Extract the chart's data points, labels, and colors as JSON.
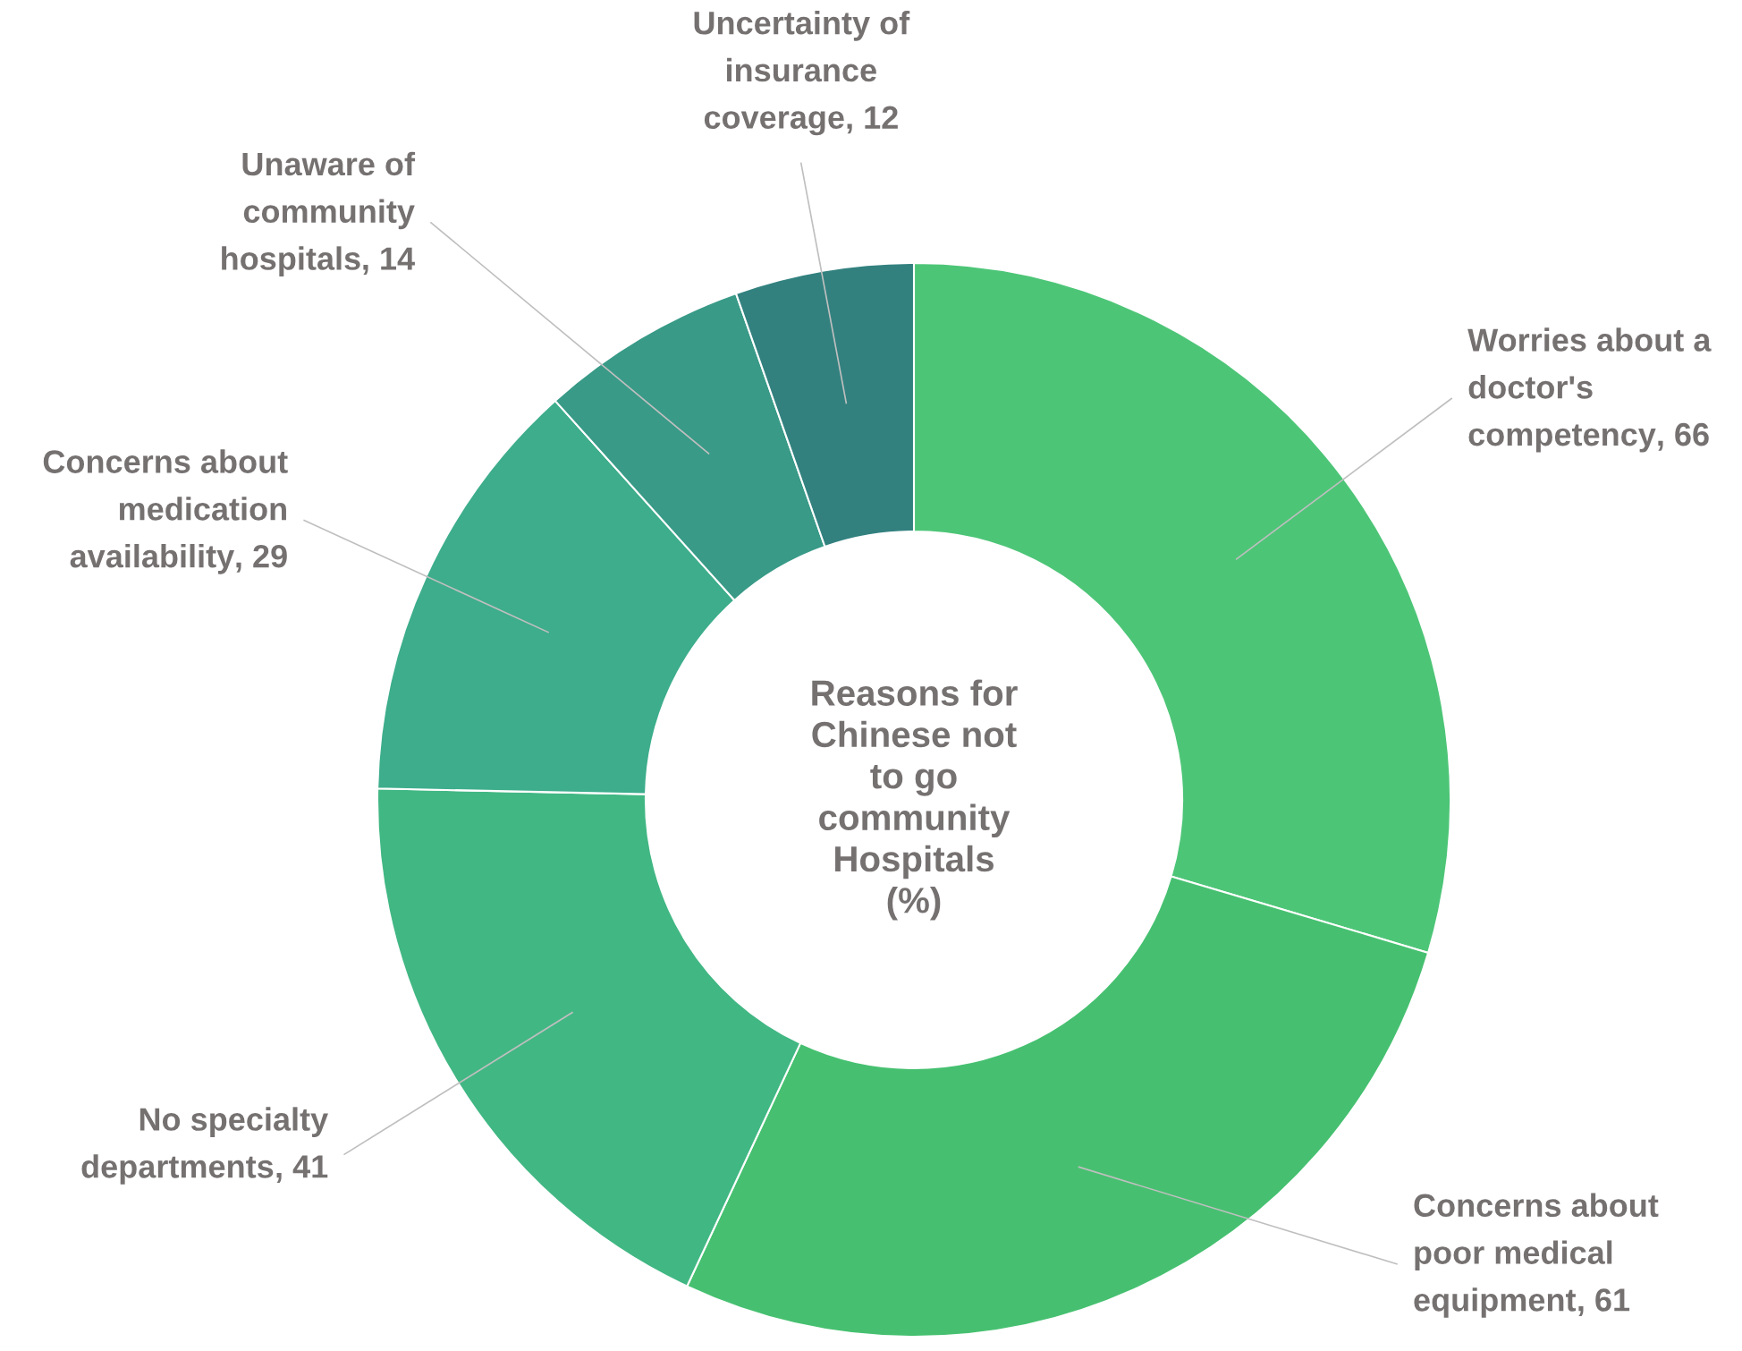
{
  "chart_data": {
    "type": "donut",
    "title": "Reasons for Chinese not to go community Hospitals (%)",
    "categories": [
      "Worries about a doctor's competency",
      "Concerns about poor medical equipment",
      "No specialty departments",
      "Concerns about medication availability",
      "Unaware of community hospitals",
      "Uncertainty of insurance coverage"
    ],
    "values": [
      66,
      61,
      41,
      29,
      14,
      12
    ],
    "colors": [
      "#4dc577",
      "#46c070",
      "#41b783",
      "#3dad8b",
      "#389a87",
      "#32817f"
    ],
    "value_labels": [
      ", 66",
      ", 61",
      ", 41",
      ", 29",
      ", 14",
      ", 12"
    ],
    "legend": false
  }
}
